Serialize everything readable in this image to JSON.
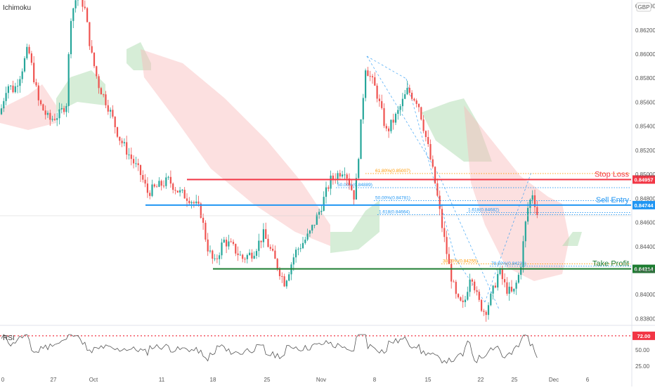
{
  "indicator_label": "Ichimoku",
  "currency": "GBP",
  "rsi_label": "RSI",
  "colors": {
    "up": "#26a69a",
    "down": "#ef5350",
    "stop": "#f23645",
    "entry": "#2196f3",
    "take": "#1e7d32",
    "fib_orange": "#ff9800",
    "fib_blue": "#2196f3",
    "cloud_bull": "#a5d6a7",
    "cloud_bear": "#f8bbbb",
    "rsi": "#555555",
    "axis_text": "#555555"
  },
  "labels": {
    "stop_loss": "Stop Loss",
    "sell_entry": "Sell Entry",
    "take_profit": "Take Profit"
  },
  "chart_data": {
    "type": "candlestick",
    "symbol_quote": "GBP",
    "ylim": [
      0.8375,
      0.8645
    ],
    "price_ticks": [
      "0.86400",
      "0.86200",
      "0.86000",
      "0.85800",
      "0.85600",
      "0.85400",
      "0.85200",
      "0.85000",
      "0.84800",
      "0.84600",
      "0.84400",
      "0.84200",
      "0.84000",
      "0.83800"
    ],
    "x_ticks": [
      "0",
      "27",
      "Oct",
      "11",
      "18",
      "25",
      "Nov",
      "8",
      "15",
      "22",
      "25",
      "Dec",
      "6"
    ],
    "levels": [
      {
        "name": "Stop Loss",
        "price": 0.84957,
        "label": "0.84957"
      },
      {
        "name": "Sell Entry",
        "price": 0.84744,
        "label": "0.84744"
      },
      {
        "name": "Take Profit",
        "price": 0.84214,
        "label": "0.84214"
      }
    ],
    "fib_annotations": [
      {
        "text": "61.80%(0.85007)",
        "price": 0.85007
      },
      {
        "text": "50.00%(0.84889)",
        "price": 0.84889
      },
      {
        "text": "50.00%(0.84781)",
        "price": 0.84781
      },
      {
        "text": "1.618(0.84664)",
        "price": 0.84664
      },
      {
        "text": "1.618(0.84682)",
        "price": 0.84682
      },
      {
        "text": "38.20%(0.84255)",
        "price": 0.84255
      },
      {
        "text": "78.60%(0.84236)",
        "price": 0.84236
      }
    ],
    "rsi": {
      "label": "RSI",
      "marker": "72.00",
      "ticks": [
        "50.00",
        "25.00"
      ],
      "ylim": [
        15,
        85
      ]
    }
  }
}
